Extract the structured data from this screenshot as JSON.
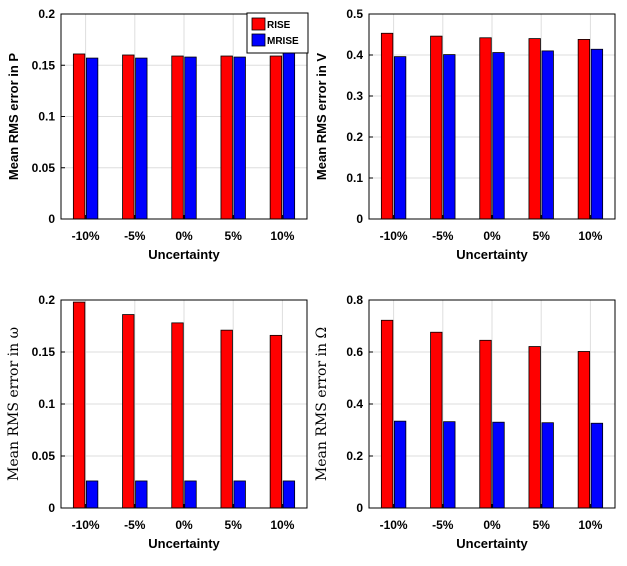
{
  "chart_data": [
    {
      "type": "bar",
      "categories": [
        "-10%",
        "-5%",
        "0%",
        "5%",
        "10%"
      ],
      "xlabel": "Uncertainty",
      "ylabel": "Mean RMS error in P",
      "ylim": [
        0,
        0.2
      ],
      "yticks": [
        "0",
        "0.05",
        "0.1",
        "0.15",
        "0.2"
      ],
      "series": [
        {
          "name": "RISE",
          "color": "#ff0000",
          "values": [
            0.161,
            0.16,
            0.159,
            0.159,
            0.159
          ]
        },
        {
          "name": "MRISE",
          "color": "#0000ff",
          "values": [
            0.157,
            0.157,
            0.158,
            0.158,
            0.162
          ]
        }
      ],
      "legend": "top-right",
      "grid": true
    },
    {
      "type": "bar",
      "categories": [
        "-10%",
        "-5%",
        "0%",
        "5%",
        "10%"
      ],
      "xlabel": "Uncertainty",
      "ylabel": "Mean RMS error in V",
      "ylim": [
        0,
        0.5
      ],
      "yticks": [
        "0",
        "0.1",
        "0.2",
        "0.3",
        "0.4",
        "0.5"
      ],
      "series": [
        {
          "name": "RISE",
          "color": "#ff0000",
          "values": [
            0.453,
            0.446,
            0.442,
            0.44,
            0.438
          ]
        },
        {
          "name": "MRISE",
          "color": "#0000ff",
          "values": [
            0.396,
            0.401,
            0.406,
            0.41,
            0.414
          ]
        }
      ],
      "grid": true
    },
    {
      "type": "bar",
      "categories": [
        "-10%",
        "-5%",
        "0%",
        "5%",
        "10%"
      ],
      "xlabel": "Uncertainty",
      "ylabel": "Mean RMS error in ω",
      "ylim": [
        0,
        0.2
      ],
      "yticks": [
        "0",
        "0.05",
        "0.1",
        "0.15",
        "0.2"
      ],
      "series": [
        {
          "name": "RISE",
          "color": "#ff0000",
          "values": [
            0.198,
            0.186,
            0.178,
            0.171,
            0.166
          ]
        },
        {
          "name": "MRISE",
          "color": "#0000ff",
          "values": [
            0.026,
            0.026,
            0.026,
            0.026,
            0.026
          ]
        }
      ],
      "grid": true
    },
    {
      "type": "bar",
      "categories": [
        "-10%",
        "-5%",
        "0%",
        "5%",
        "10%"
      ],
      "xlabel": "Uncertainty",
      "ylabel": "Mean RMS error in Ω",
      "ylim": [
        0,
        0.8
      ],
      "yticks": [
        "0",
        "0.2",
        "0.4",
        "0.6",
        "0.8"
      ],
      "series": [
        {
          "name": "RISE",
          "color": "#ff0000",
          "values": [
            0.722,
            0.676,
            0.645,
            0.621,
            0.602
          ]
        },
        {
          "name": "MRISE",
          "color": "#0000ff",
          "values": [
            0.334,
            0.332,
            0.33,
            0.328,
            0.326
          ]
        }
      ],
      "grid": true
    }
  ]
}
